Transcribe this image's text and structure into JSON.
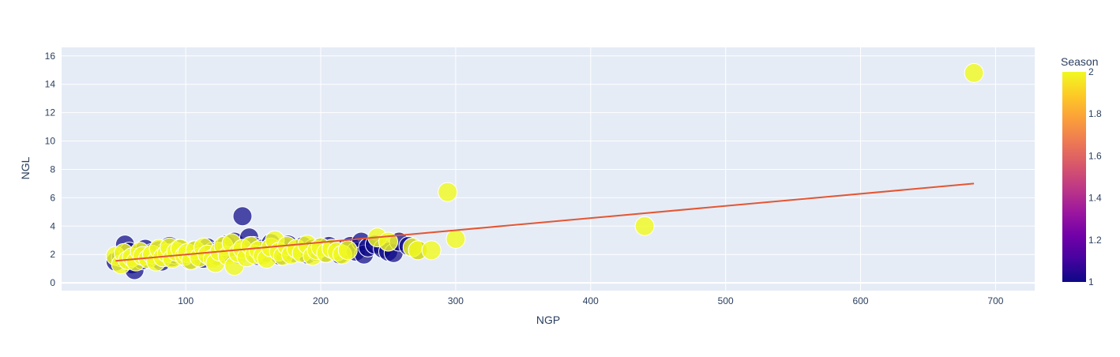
{
  "chart_data": {
    "type": "scatter",
    "title": "",
    "xlabel": "NGP",
    "ylabel": "NGL",
    "xlim": [
      8,
      729
    ],
    "ylim": [
      -0.55,
      16.6
    ],
    "xticks": [
      100,
      200,
      300,
      400,
      500,
      600,
      700
    ],
    "yticks": [
      0,
      2,
      4,
      6,
      8,
      10,
      12,
      14,
      16
    ],
    "grid": true,
    "colorbar": {
      "title": "Season",
      "min": 1,
      "max": 2,
      "ticks": [
        1,
        1.2,
        1.4,
        1.6,
        1.8,
        2
      ],
      "colorscale": [
        "#0d0887",
        "#46039f",
        "#7201a8",
        "#9c179e",
        "#bd3786",
        "#d8576b",
        "#ed7953",
        "#fb9f3a",
        "#fdca26",
        "#f0f921"
      ]
    },
    "series": [
      {
        "season": 1,
        "color": "#0d0887",
        "points": [
          [
            48,
            1.5
          ],
          [
            52,
            1.8
          ],
          [
            55,
            2.7
          ],
          [
            58,
            2.2
          ],
          [
            60,
            1.3
          ],
          [
            62,
            0.9
          ],
          [
            65,
            2.0
          ],
          [
            68,
            1.6
          ],
          [
            70,
            2.4
          ],
          [
            72,
            1.9
          ],
          [
            75,
            2.1
          ],
          [
            78,
            1.7
          ],
          [
            80,
            2.3
          ],
          [
            82,
            1.5
          ],
          [
            85,
            2.2
          ],
          [
            88,
            2.6
          ],
          [
            90,
            1.8
          ],
          [
            92,
            2.0
          ],
          [
            95,
            2.4
          ],
          [
            98,
            1.9
          ],
          [
            100,
            2.1
          ],
          [
            103,
            1.6
          ],
          [
            106,
            2.3
          ],
          [
            110,
            2.0
          ],
          [
            113,
            1.7
          ],
          [
            116,
            2.5
          ],
          [
            120,
            2.2
          ],
          [
            123,
            1.9
          ],
          [
            126,
            2.4
          ],
          [
            130,
            2.7
          ],
          [
            133,
            2.1
          ],
          [
            136,
            2.9
          ],
          [
            139,
            2.0
          ],
          [
            142,
            4.7
          ],
          [
            145,
            2.3
          ],
          [
            147,
            3.2
          ],
          [
            150,
            2.6
          ],
          [
            153,
            1.9
          ],
          [
            156,
            2.4
          ],
          [
            160,
            2.1
          ],
          [
            163,
            2.8
          ],
          [
            166,
            2.2
          ],
          [
            170,
            1.9
          ],
          [
            173,
            2.5
          ],
          [
            176,
            2.7
          ],
          [
            180,
            2.1
          ],
          [
            183,
            2.3
          ],
          [
            187,
            2.6
          ],
          [
            190,
            2.0
          ],
          [
            194,
            2.4
          ],
          [
            197,
            2.2
          ],
          [
            200,
            2.5
          ],
          [
            203,
            2.1
          ],
          [
            206,
            2.6
          ],
          [
            210,
            2.3
          ],
          [
            214,
            2.0
          ],
          [
            218,
            2.4
          ],
          [
            222,
            2.6
          ],
          [
            226,
            2.2
          ],
          [
            230,
            2.9
          ],
          [
            232,
            2.0
          ],
          [
            235,
            2.5
          ],
          [
            240,
            2.7
          ],
          [
            246,
            2.4
          ],
          [
            250,
            2.2
          ],
          [
            254,
            2.1
          ],
          [
            258,
            2.9
          ],
          [
            265,
            2.6
          ],
          [
            272,
            2.3
          ]
        ]
      },
      {
        "season": 2,
        "color": "#f0f921",
        "points": [
          [
            48,
            1.9
          ],
          [
            52,
            1.3
          ],
          [
            54,
            2.1
          ],
          [
            57,
            1.6
          ],
          [
            60,
            1.8
          ],
          [
            63,
            1.5
          ],
          [
            66,
            2.2
          ],
          [
            68,
            1.9
          ],
          [
            72,
            1.7
          ],
          [
            75,
            2.0
          ],
          [
            78,
            1.5
          ],
          [
            80,
            2.4
          ],
          [
            83,
            1.8
          ],
          [
            86,
            2.1
          ],
          [
            88,
            2.5
          ],
          [
            90,
            1.7
          ],
          [
            93,
            2.2
          ],
          [
            96,
            2.4
          ],
          [
            99,
            1.9
          ],
          [
            101,
            2.1
          ],
          [
            104,
            1.6
          ],
          [
            107,
            2.3
          ],
          [
            110,
            1.8
          ],
          [
            113,
            2.5
          ],
          [
            116,
            2.0
          ],
          [
            120,
            1.7
          ],
          [
            122,
            1.4
          ],
          [
            125,
            2.2
          ],
          [
            128,
            2.6
          ],
          [
            131,
            1.9
          ],
          [
            134,
            2.8
          ],
          [
            136,
            1.2
          ],
          [
            139,
            2.1
          ],
          [
            142,
            2.4
          ],
          [
            145,
            1.8
          ],
          [
            148,
            2.6
          ],
          [
            151,
            2.0
          ],
          [
            154,
            2.3
          ],
          [
            157,
            1.9
          ],
          [
            160,
            1.7
          ],
          [
            163,
            2.5
          ],
          [
            166,
            3.0
          ],
          [
            169,
            2.2
          ],
          [
            172,
            1.9
          ],
          [
            175,
            2.6
          ],
          [
            178,
            2.0
          ],
          [
            182,
            2.4
          ],
          [
            186,
            2.1
          ],
          [
            190,
            2.7
          ],
          [
            194,
            1.9
          ],
          [
            197,
            2.3
          ],
          [
            200,
            2.5
          ],
          [
            204,
            2.1
          ],
          [
            208,
            2.4
          ],
          [
            212,
            2.2
          ],
          [
            216,
            2.0
          ],
          [
            220,
            2.3
          ],
          [
            242,
            3.2
          ],
          [
            250,
            2.9
          ],
          [
            268,
            2.5
          ],
          [
            272,
            2.3
          ],
          [
            282,
            2.3
          ],
          [
            294,
            6.4
          ],
          [
            300,
            3.1
          ],
          [
            440,
            4.0
          ],
          [
            684,
            14.8
          ]
        ]
      }
    ],
    "trendline": {
      "color": "#e45633",
      "points": [
        [
          48,
          1.55
        ],
        [
          684,
          7.0
        ]
      ]
    }
  }
}
